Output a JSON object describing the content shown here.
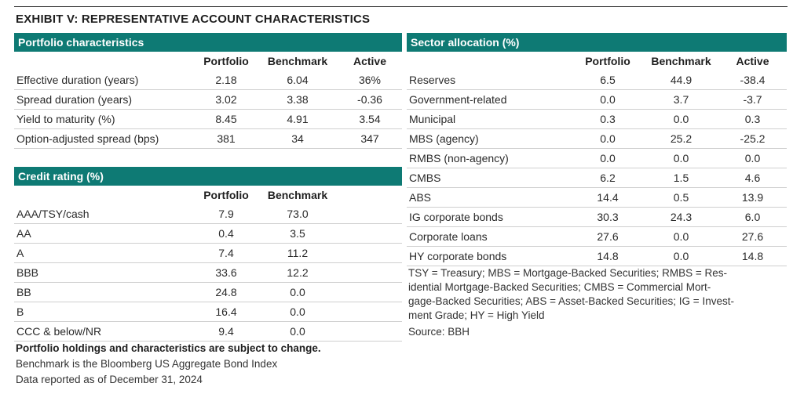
{
  "title": "EXHIBIT V: REPRESENTATIVE ACCOUNT CHARACTERISTICS",
  "portfolio_characteristics": {
    "header": "Portfolio characteristics",
    "columns": [
      "Portfolio",
      "Benchmark",
      "Active"
    ],
    "rows": [
      {
        "label": "Effective duration (years)",
        "portfolio": "2.18",
        "benchmark": "6.04",
        "active": "36%"
      },
      {
        "label": "Spread duration (years)",
        "portfolio": "3.02",
        "benchmark": "3.38",
        "active": "-0.36"
      },
      {
        "label": "Yield to maturity (%)",
        "portfolio": "8.45",
        "benchmark": "4.91",
        "active": "3.54"
      },
      {
        "label": "Option-adjusted spread (bps)",
        "portfolio": "381",
        "benchmark": "34",
        "active": "347"
      }
    ]
  },
  "credit_rating": {
    "header": "Credit rating (%)",
    "columns": [
      "Portfolio",
      "Benchmark"
    ],
    "rows": [
      {
        "label": "AAA/TSY/cash",
        "portfolio": "7.9",
        "benchmark": "73.0"
      },
      {
        "label": "AA",
        "portfolio": "0.4",
        "benchmark": "3.5"
      },
      {
        "label": "A",
        "portfolio": "7.4",
        "benchmark": "11.2"
      },
      {
        "label": "BBB",
        "portfolio": "33.6",
        "benchmark": "12.2"
      },
      {
        "label": "BB",
        "portfolio": "24.8",
        "benchmark": "0.0"
      },
      {
        "label": "B",
        "portfolio": "16.4",
        "benchmark": "0.0"
      },
      {
        "label": "CCC & below/NR",
        "portfolio": "9.4",
        "benchmark": "0.0"
      }
    ]
  },
  "sector_allocation": {
    "header": "Sector allocation (%)",
    "columns": [
      "Portfolio",
      "Benchmark",
      "Active"
    ],
    "rows": [
      {
        "label": "Reserves",
        "portfolio": "6.5",
        "benchmark": "44.9",
        "active": "-38.4"
      },
      {
        "label": "Government-related",
        "portfolio": "0.0",
        "benchmark": "3.7",
        "active": "-3.7"
      },
      {
        "label": "Municipal",
        "portfolio": "0.3",
        "benchmark": "0.0",
        "active": "0.3"
      },
      {
        "label": "MBS (agency)",
        "portfolio": "0.0",
        "benchmark": "25.2",
        "active": "-25.2"
      },
      {
        "label": "RMBS (non-agency)",
        "portfolio": "0.0",
        "benchmark": "0.0",
        "active": "0.0"
      },
      {
        "label": "CMBS",
        "portfolio": "6.2",
        "benchmark": "1.5",
        "active": "4.6"
      },
      {
        "label": "ABS",
        "portfolio": "14.4",
        "benchmark": "0.5",
        "active": "13.9"
      },
      {
        "label": "IG corporate bonds",
        "portfolio": "30.3",
        "benchmark": "24.3",
        "active": "6.0"
      },
      {
        "label": "Corporate loans",
        "portfolio": "27.6",
        "benchmark": "0.0",
        "active": "27.6"
      },
      {
        "label": "HY corporate bonds",
        "portfolio": "14.8",
        "benchmark": "0.0",
        "active": "14.8"
      }
    ]
  },
  "abbreviations": [
    "TSY = Treasury; MBS = Mortgage-Backed Securities; RMBS = Res-",
    "idential Mortgage-Backed Securities; CMBS = Commercial Mort-",
    "gage-Backed Securities; ABS = Asset-Backed Securities; IG = Invest-",
    "ment Grade; HY = High Yield"
  ],
  "source": "Source: BBH",
  "notes": {
    "holdings": "Portfolio holdings and characteristics are subject to change.",
    "benchmark": "Benchmark is the Bloomberg US Aggregate Bond Index",
    "as_of": "Data reported as of December 31, 2024"
  },
  "colors": {
    "header_bg": "#0e7a74",
    "header_text": "#ffffff"
  }
}
